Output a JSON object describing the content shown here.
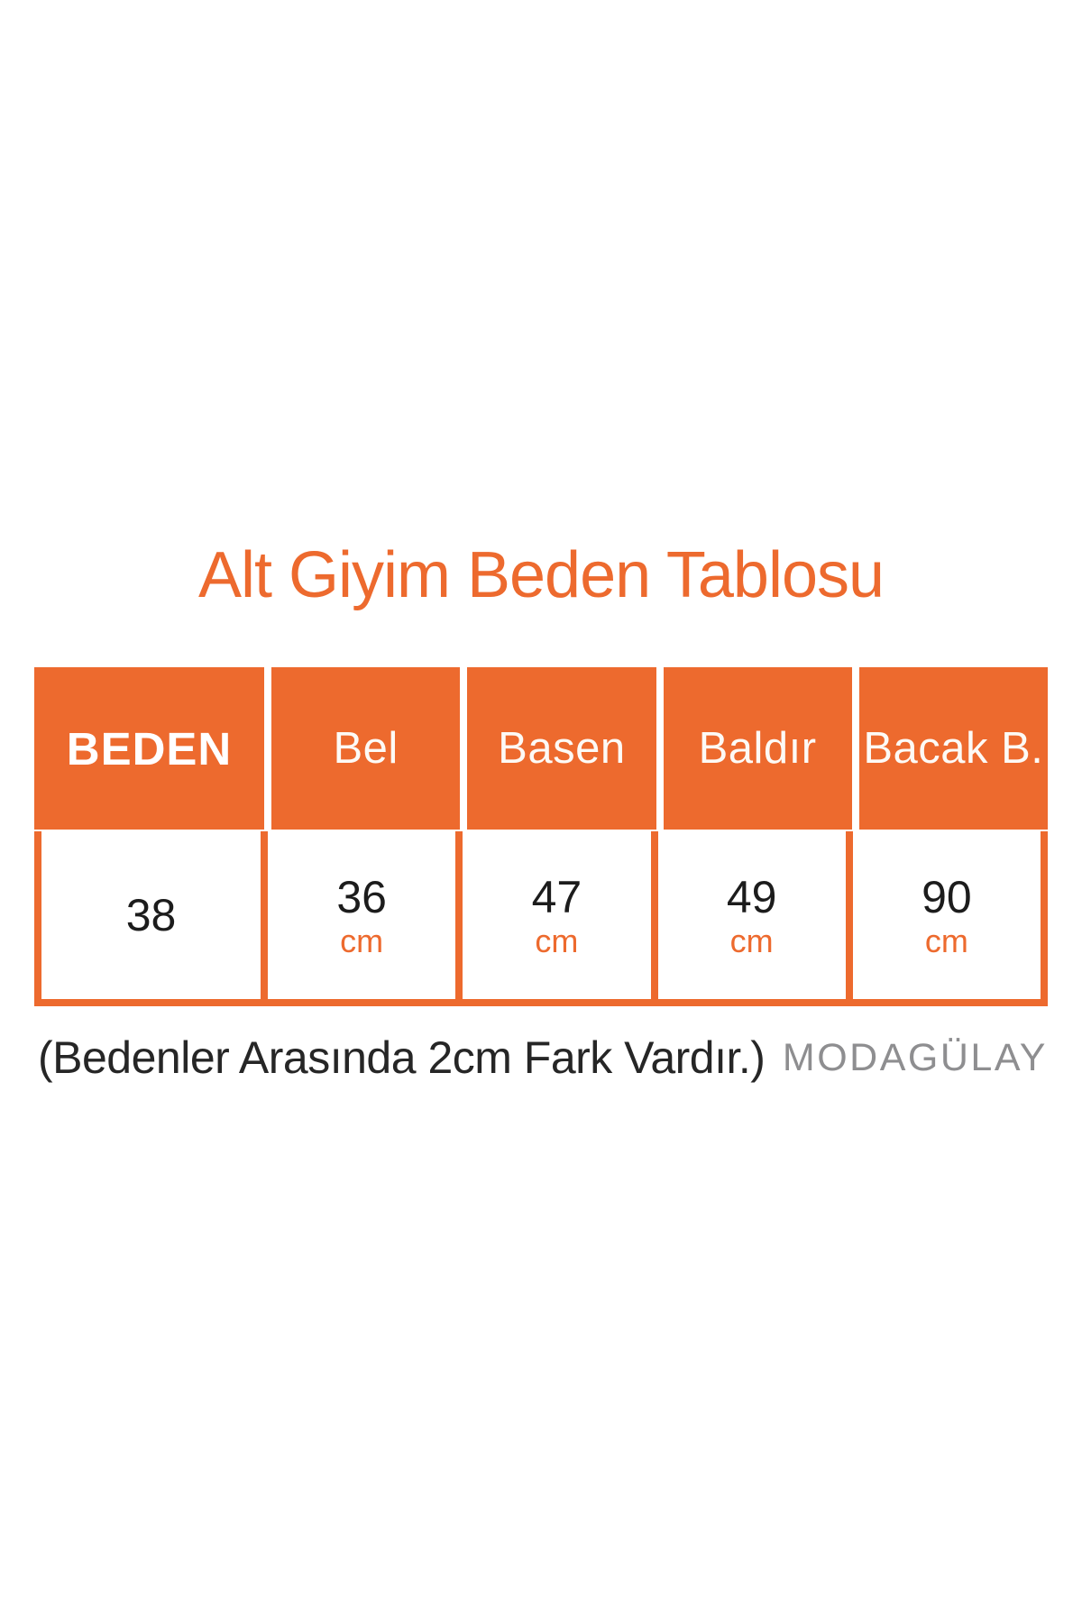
{
  "title": "Alt Giyim Beden Tablosu",
  "colors": {
    "accent_orange": "#ED6A2E",
    "header_text": "#FFFFFF",
    "value_text": "#1C1C1C",
    "note_text": "#262626",
    "logo_gray": "#8E8E90",
    "background": "#FFFFFF"
  },
  "size_table": {
    "columns": [
      "BEDEN",
      "Bel",
      "Basen",
      "Baldır",
      "Bacak B."
    ],
    "row": {
      "beden": "38",
      "bel": {
        "value": "36",
        "unit": "cm"
      },
      "basen": {
        "value": "47",
        "unit": "cm"
      },
      "baldir": {
        "value": "49",
        "unit": "cm"
      },
      "bacak_b": {
        "value": "90",
        "unit": "cm"
      }
    }
  },
  "note": "(Bedenler Arasında 2cm Fark Vardır.)",
  "brand": {
    "logo_text": "MODAGÜLAY"
  },
  "chart_data": {
    "type": "table",
    "title": "Alt Giyim Beden Tablosu",
    "columns": [
      "BEDEN",
      "Bel",
      "Basen",
      "Baldır",
      "Bacak B."
    ],
    "rows": [
      [
        "38",
        "36 cm",
        "47 cm",
        "49 cm",
        "90 cm"
      ]
    ],
    "note": "(Bedenler Arasında 2cm Fark Vardır.)",
    "legend_position": "none",
    "grid": false
  }
}
